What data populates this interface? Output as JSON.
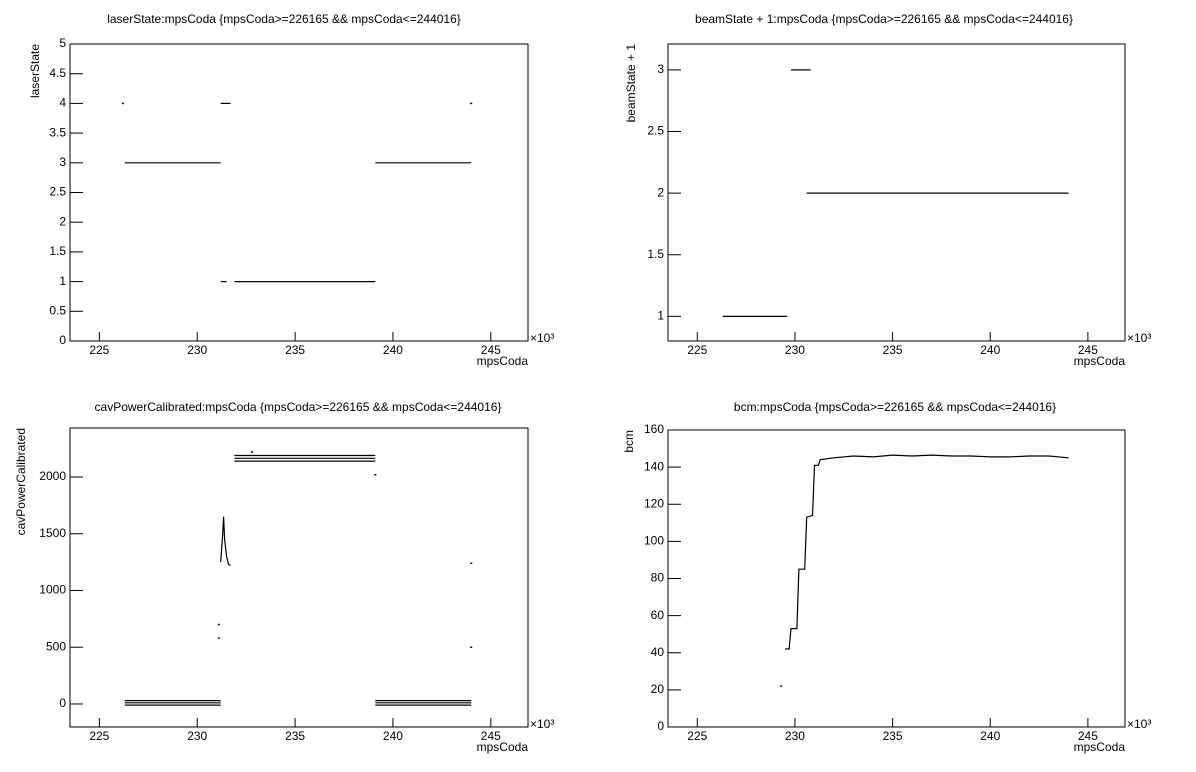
{
  "chart_data": [
    {
      "type": "line",
      "title": "laserState:mpsCoda {mpsCoda>=226165 && mpsCoda<=244016}",
      "x_label": "mpsCoda",
      "y_label": "laserState",
      "x_multiplier": "×10³",
      "xlim": [
        223.5,
        246.9
      ],
      "xticks": [
        225,
        230,
        235,
        240,
        245
      ],
      "ylim": [
        0,
        5
      ],
      "yticks": [
        0,
        0.5,
        1,
        1.5,
        2,
        2.5,
        3,
        3.5,
        4,
        4.5,
        5
      ],
      "color": "#000000",
      "x": [
        226.2,
        null,
        226.3,
        231.2,
        null,
        231.2,
        231.7,
        null,
        231.2,
        231.5,
        null,
        231.9,
        239.1,
        null,
        239.1,
        244.0,
        null,
        244.0
      ],
      "y": [
        4,
        null,
        3,
        3,
        null,
        4,
        4,
        null,
        1,
        1,
        null,
        1,
        1,
        null,
        3,
        3,
        null,
        4
      ]
    },
    {
      "type": "line",
      "title": "beamState + 1:mpsCoda {mpsCoda>=226165 && mpsCoda<=244016}",
      "x_label": "mpsCoda",
      "y_label": "beamState + 1",
      "x_multiplier": "×10³",
      "xlim": [
        223.5,
        246.9
      ],
      "xticks": [
        225,
        230,
        235,
        240,
        245
      ],
      "ylim": [
        0.8,
        3.21
      ],
      "yticks": [
        1,
        1.5,
        2,
        2.5,
        3
      ],
      "color": "#000000",
      "x": [
        226.3,
        229.6,
        null,
        229.8,
        230.8,
        null,
        230.6,
        244.0
      ],
      "y": [
        1,
        1,
        null,
        3,
        3,
        null,
        2,
        2
      ]
    },
    {
      "type": "line",
      "title": "cavPowerCalibrated:mpsCoda {mpsCoda>=226165 && mpsCoda<=244016}",
      "x_label": "mpsCoda",
      "y_label": "cavPowerCalibrated",
      "x_multiplier": "×10³",
      "xlim": [
        223.5,
        246.9
      ],
      "xticks": [
        225,
        230,
        235,
        240,
        245
      ],
      "ylim": [
        -203,
        2432
      ],
      "yticks": [
        0,
        500,
        1000,
        1500,
        2000
      ],
      "color": "#000000",
      "x": [
        226.3,
        231.2,
        null,
        226.3,
        231.2,
        null,
        226.3,
        231.2,
        null,
        239.1,
        244.0,
        null,
        239.1,
        244.0,
        null,
        239.1,
        244.0,
        null,
        231.9,
        239.1,
        null,
        231.9,
        239.1,
        null,
        231.9,
        239.1,
        null,
        231.2,
        231.3,
        231.35,
        231.4,
        231.5,
        231.6,
        231.7,
        null,
        231.1,
        null,
        231.1,
        null,
        244.0,
        null,
        244.0,
        null,
        239.1,
        null,
        232.8
      ],
      "y": [
        30,
        30,
        null,
        10,
        10,
        null,
        -10,
        -10,
        null,
        30,
        30,
        null,
        10,
        10,
        null,
        -10,
        -10,
        null,
        2140,
        2140,
        null,
        2165,
        2165,
        null,
        2190,
        2190,
        null,
        1250,
        1500,
        1650,
        1450,
        1300,
        1230,
        1220,
        null,
        580,
        null,
        700,
        null,
        1240,
        null,
        500,
        null,
        2020,
        null,
        2220
      ]
    },
    {
      "type": "line",
      "title": "bcm:mpsCoda {mpsCoda>=226165 && mpsCoda<=244016}",
      "x_label": "mpsCoda",
      "y_label": "bcm",
      "x_multiplier": "×10³",
      "xlim": [
        223.5,
        246.9
      ],
      "xticks": [
        225,
        230,
        235,
        240,
        245
      ],
      "ylim": [
        0,
        160
      ],
      "yticks": [
        0,
        20,
        40,
        60,
        80,
        100,
        120,
        140,
        160
      ],
      "color": "#000000",
      "x": [
        229.3,
        null,
        229.5,
        229.7,
        229.8,
        230.1,
        230.2,
        230.5,
        230.6,
        230.9,
        231.0,
        231.2,
        231.3,
        232,
        233,
        234,
        235,
        236,
        237,
        238,
        239,
        240,
        241,
        242,
        243,
        244
      ],
      "y": [
        22,
        null,
        42,
        42,
        53,
        53,
        85,
        85,
        113,
        114,
        141,
        141,
        144,
        145,
        146,
        145.5,
        146.5,
        146,
        146.5,
        146,
        146,
        145.5,
        145.5,
        146,
        146,
        145
      ]
    }
  ]
}
